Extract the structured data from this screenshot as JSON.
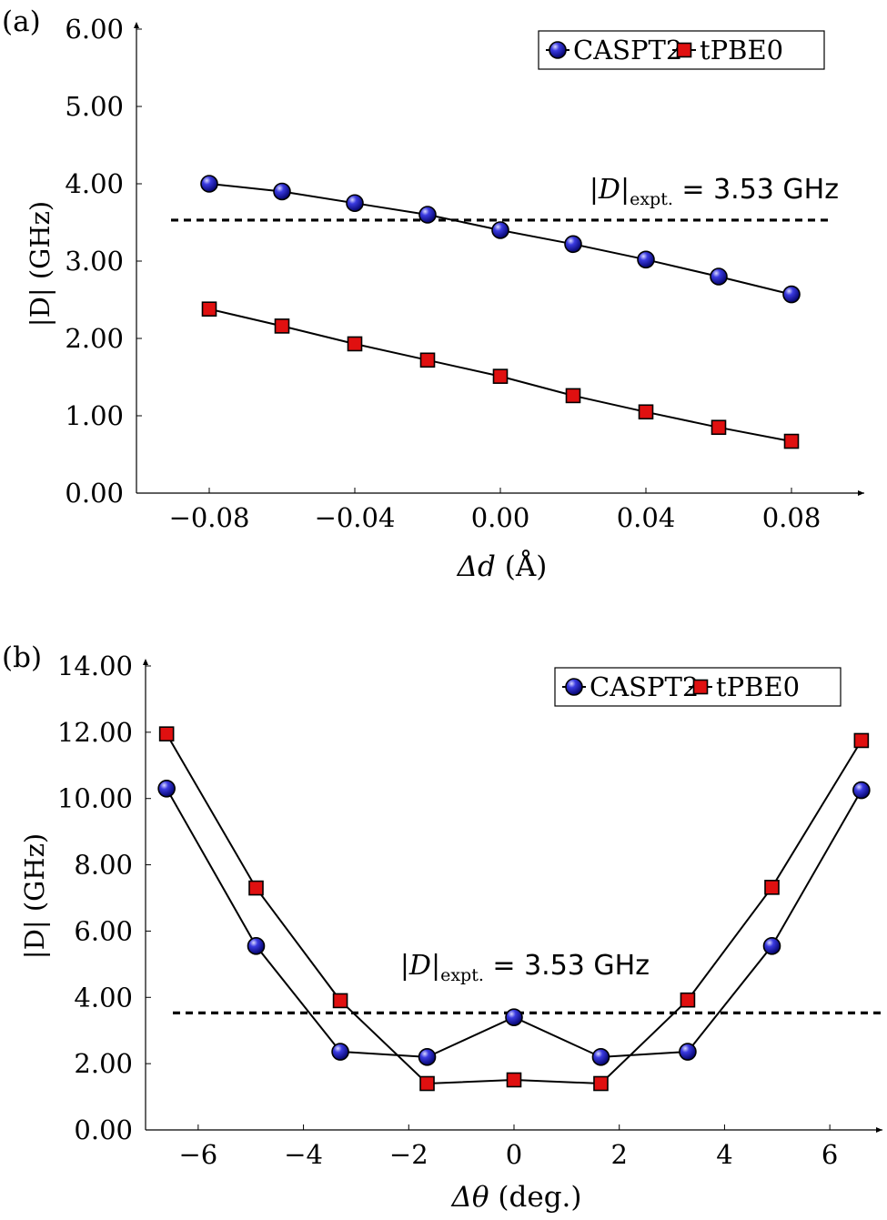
{
  "figure": {
    "panels": [
      {
        "panel_label": "(a)",
        "xlabel_symbol": "Δd",
        "xlabel_unit": " (Å)",
        "ylabel": "|D| (GHz)",
        "ref_label_main": "|D|",
        "ref_label_sub": "expt.",
        "ref_label_rest": " = 3.53 GHz"
      },
      {
        "panel_label": "(b)",
        "xlabel_symbol": "Δθ",
        "xlabel_unit": " (deg.)",
        "ylabel": "|D| (GHz)",
        "ref_label_main": "|D|",
        "ref_label_sub": "expt.",
        "ref_label_rest": " = 3.53 GHz"
      }
    ]
  },
  "chart_data": [
    {
      "type": "line",
      "xlim": [
        -0.1,
        0.1
      ],
      "ylim": [
        0,
        6
      ],
      "xticks": [
        -0.08,
        -0.04,
        0.0,
        0.04,
        0.08
      ],
      "xtick_labels": [
        "−0.08",
        "−0.04",
        "0.00",
        "0.04",
        "0.08"
      ],
      "yticks": [
        0,
        1,
        2,
        3,
        4,
        5,
        6
      ],
      "ytick_labels": [
        "0.00",
        "1.00",
        "2.00",
        "3.00",
        "4.00",
        "5.00",
        "6.00"
      ],
      "grid": false,
      "legend": "top-right",
      "reference_line": {
        "y": 3.53,
        "style": "dashed"
      },
      "x": [
        -0.08,
        -0.06,
        -0.04,
        -0.02,
        0.0,
        0.02,
        0.04,
        0.06,
        0.08
      ],
      "series": [
        {
          "name": "CASPT2",
          "marker": "circle",
          "color": "#1515b0",
          "values": [
            4.0,
            3.9,
            3.75,
            3.6,
            3.4,
            3.22,
            3.02,
            2.8,
            2.57
          ]
        },
        {
          "name": "tPBE0",
          "marker": "square",
          "color": "#e01010",
          "values": [
            2.38,
            2.16,
            1.93,
            1.72,
            1.51,
            1.26,
            1.05,
            0.85,
            0.67
          ]
        }
      ]
    },
    {
      "type": "line",
      "xlim": [
        -7,
        7
      ],
      "ylim": [
        0,
        14
      ],
      "xticks": [
        -6,
        -4,
        -2,
        0,
        2,
        4,
        6
      ],
      "xtick_labels": [
        "−6",
        "−4",
        "−2",
        "0",
        "2",
        "4",
        "6"
      ],
      "yticks": [
        0,
        2,
        4,
        6,
        8,
        10,
        12,
        14
      ],
      "ytick_labels": [
        "0.00",
        "2.00",
        "4.00",
        "6.00",
        "8.00",
        "10.00",
        "12.00",
        "14.00"
      ],
      "grid": false,
      "legend": "top-right",
      "reference_line": {
        "y": 3.53,
        "style": "dashed"
      },
      "x": [
        -6.6,
        -4.9,
        -3.3,
        -1.65,
        0,
        1.65,
        3.3,
        4.9,
        6.6
      ],
      "series": [
        {
          "name": "CASPT2",
          "marker": "circle",
          "color": "#1515b0",
          "values": [
            10.3,
            5.55,
            2.36,
            2.2,
            3.4,
            2.2,
            2.36,
            5.55,
            10.25
          ]
        },
        {
          "name": "tPBE0",
          "marker": "square",
          "color": "#e01010",
          "values": [
            11.95,
            7.3,
            3.9,
            1.4,
            1.51,
            1.4,
            3.92,
            7.32,
            11.75
          ]
        }
      ]
    }
  ]
}
